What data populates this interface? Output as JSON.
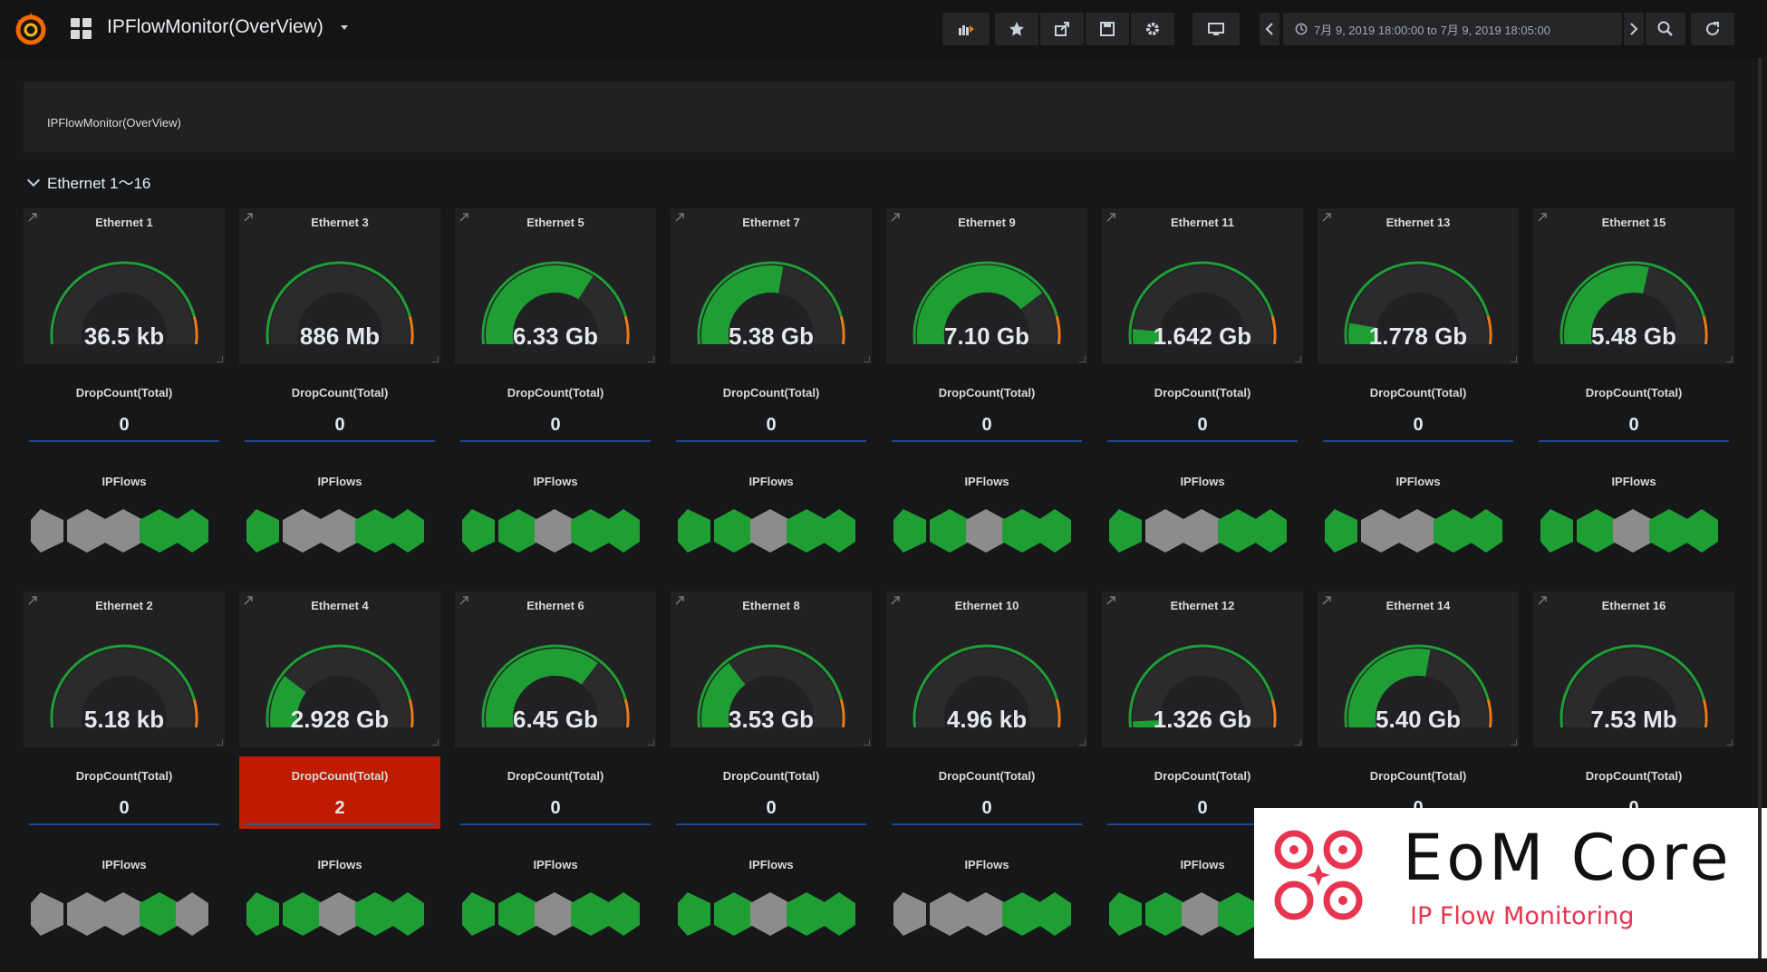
{
  "header": {
    "dashboard_title": "IPFlowMonitor(OverView)",
    "time_range": "7月 9, 2019 18:00:00 to 7月 9, 2019 18:05:00",
    "icons": [
      "add-panel-icon",
      "star-icon",
      "share-icon",
      "save-icon",
      "gear-icon",
      "tv-icon",
      "chevron-left-icon",
      "clock-icon",
      "chevron-right-icon",
      "zoom-out-icon",
      "refresh-icon"
    ]
  },
  "text_panel": {
    "title": "IPFlowMonitor(OverView)"
  },
  "row": {
    "title": "Ethernet 1～16"
  },
  "labels": {
    "drop": "DropCount(Total)",
    "flows": "IPFlows"
  },
  "colors": {
    "green": "#1f9e34",
    "gray": "#8c8c8c",
    "alert": "#bf1b00",
    "threshold_orange": "#eb7b18",
    "threshold_red": "#e02f44"
  },
  "panels": [
    {
      "name": "Ethernet 1",
      "value": "36.5 kb",
      "fill": 0.0,
      "drop": "0",
      "flows": [
        "gray",
        "gray",
        "gray",
        "green",
        "green"
      ]
    },
    {
      "name": "Ethernet 3",
      "value": "886 Mb",
      "fill": 0.06,
      "drop": "0",
      "flows": [
        "green",
        "gray",
        "gray",
        "green",
        "green"
      ]
    },
    {
      "name": "Ethernet 5",
      "value": "6.33 Gb",
      "fill": 0.63,
      "drop": "0",
      "flows": [
        "green",
        "green",
        "gray",
        "green",
        "green"
      ]
    },
    {
      "name": "Ethernet 7",
      "value": "5.38 Gb",
      "fill": 0.54,
      "drop": "0",
      "flows": [
        "green",
        "green",
        "gray",
        "green",
        "green"
      ]
    },
    {
      "name": "Ethernet 9",
      "value": "7.10 Gb",
      "fill": 0.71,
      "drop": "0",
      "flows": [
        "green",
        "green",
        "gray",
        "green",
        "green"
      ]
    },
    {
      "name": "Ethernet 11",
      "value": "1.642 Gb",
      "fill": 0.16,
      "drop": "0",
      "flows": [
        "green",
        "gray",
        "gray",
        "green",
        "green"
      ]
    },
    {
      "name": "Ethernet 13",
      "value": "1.778 Gb",
      "fill": 0.18,
      "drop": "0",
      "flows": [
        "green",
        "gray",
        "gray",
        "green",
        "green"
      ]
    },
    {
      "name": "Ethernet 15",
      "value": "5.48 Gb",
      "fill": 0.55,
      "drop": "0",
      "flows": [
        "green",
        "green",
        "gray",
        "green",
        "green"
      ]
    },
    {
      "name": "Ethernet 2",
      "value": "5.18 kb",
      "fill": 0.0,
      "drop": "0",
      "flows": [
        "gray",
        "gray",
        "gray",
        "green",
        "gray"
      ]
    },
    {
      "name": "Ethernet 4",
      "value": "2.928 Gb",
      "fill": 0.29,
      "drop": "2",
      "alert": true,
      "flows": [
        "green",
        "green",
        "gray",
        "green",
        "green"
      ]
    },
    {
      "name": "Ethernet 6",
      "value": "6.45 Gb",
      "fill": 0.65,
      "drop": "0",
      "flows": [
        "green",
        "green",
        "gray",
        "green",
        "green"
      ]
    },
    {
      "name": "Ethernet 8",
      "value": "3.53 Gb",
      "fill": 0.35,
      "drop": "0",
      "flows": [
        "green",
        "green",
        "gray",
        "green",
        "green"
      ]
    },
    {
      "name": "Ethernet 10",
      "value": "4.96 kb",
      "fill": 0.0,
      "drop": "0",
      "flows": [
        "gray",
        "gray",
        "gray",
        "green",
        "green"
      ]
    },
    {
      "name": "Ethernet 12",
      "value": "1.326 Gb",
      "fill": 0.13,
      "drop": "0",
      "flows": [
        "green",
        "green",
        "gray",
        "green",
        "green"
      ]
    },
    {
      "name": "Ethernet 14",
      "value": "5.40 Gb",
      "fill": 0.54,
      "drop": "0",
      "flows": [
        "green",
        "green",
        "gray",
        "green",
        "green"
      ]
    },
    {
      "name": "Ethernet 16",
      "value": "7.53 Mb",
      "fill": 0.0,
      "drop": "0",
      "flows": [
        "green",
        "green",
        "gray",
        "green",
        "green"
      ]
    }
  ],
  "brand": {
    "title": "EoM Core",
    "subtitle": "IP Flow Monitoring"
  }
}
